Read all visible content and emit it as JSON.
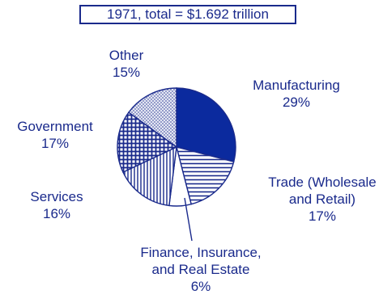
{
  "colors": {
    "ink": "#1a2a8c",
    "manufacturing_fill": "#0b2a9e",
    "background": "#ffffff"
  },
  "chart_data": {
    "type": "pie",
    "title": "1971, total = $1.692 trillion",
    "slices": [
      {
        "label_lines": [
          "Manufacturing"
        ],
        "pct_label": "29%",
        "value": 29,
        "pattern": "solid"
      },
      {
        "label_lines": [
          "Trade (Wholesale",
          "and Retail)"
        ],
        "pct_label": "17%",
        "value": 17,
        "pattern": "horizontal"
      },
      {
        "label_lines": [
          "Finance, Insurance,",
          "and Real Estate"
        ],
        "pct_label": "6%",
        "value": 6,
        "pattern": "white"
      },
      {
        "label_lines": [
          "Services"
        ],
        "pct_label": "16%",
        "value": 16,
        "pattern": "vertical"
      },
      {
        "label_lines": [
          "Government"
        ],
        "pct_label": "17%",
        "value": 17,
        "pattern": "grid"
      },
      {
        "label_lines": [
          "Other"
        ],
        "pct_label": "15%",
        "value": 15,
        "pattern": "dots"
      }
    ]
  }
}
